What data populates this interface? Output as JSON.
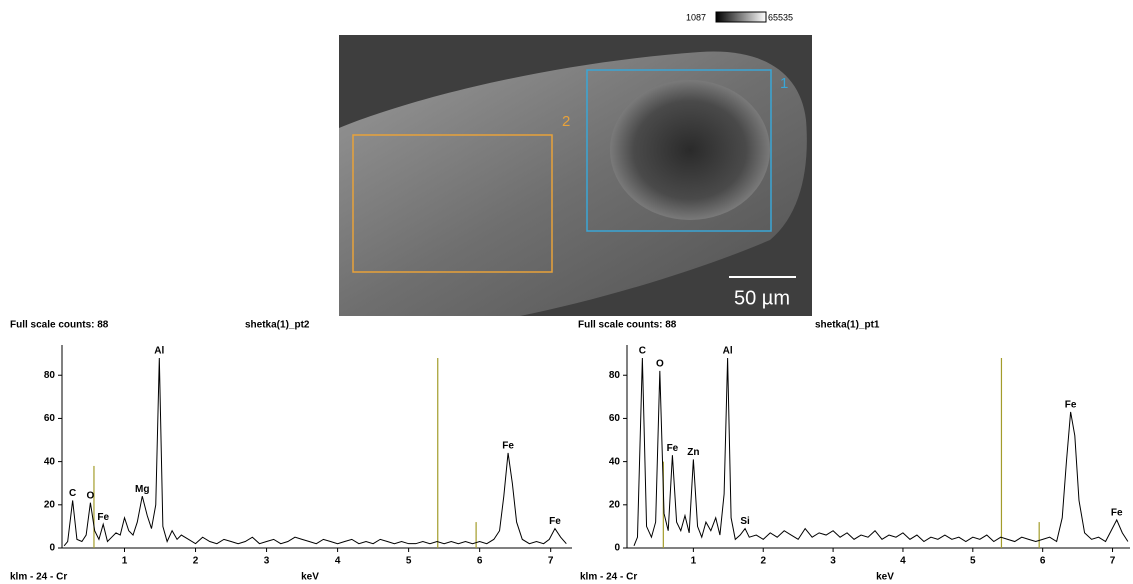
{
  "image": {
    "colorbar_min": 1087,
    "colorbar_max": 65535,
    "region_labels": [
      "1",
      "2"
    ],
    "scale_bar": "50 µm"
  },
  "chart_data": [
    {
      "type": "line",
      "title": "shetka(1)_pt2",
      "subtitle": "Full scale counts: 88",
      "marker_label": "klm - 24 - Cr",
      "x_label": "keV",
      "xlim": [
        0.12,
        7.3
      ],
      "ylim": [
        0,
        94
      ],
      "xticks": [
        1,
        2,
        3,
        4,
        5,
        6,
        7
      ],
      "yticks": [
        0,
        20,
        40,
        60,
        80
      ],
      "color": "#000000",
      "x": [
        0.15,
        0.2,
        0.27,
        0.33,
        0.4,
        0.46,
        0.52,
        0.58,
        0.64,
        0.7,
        0.76,
        0.82,
        0.88,
        0.94,
        1.0,
        1.06,
        1.12,
        1.18,
        1.25,
        1.32,
        1.38,
        1.44,
        1.49,
        1.54,
        1.6,
        1.67,
        1.74,
        1.8,
        1.9,
        2.0,
        2.1,
        2.2,
        2.3,
        2.4,
        2.5,
        2.6,
        2.7,
        2.8,
        2.9,
        3.0,
        3.1,
        3.2,
        3.3,
        3.4,
        3.5,
        3.6,
        3.7,
        3.8,
        3.9,
        4.0,
        4.1,
        4.2,
        4.3,
        4.4,
        4.5,
        4.6,
        4.7,
        4.8,
        4.9,
        5.0,
        5.1,
        5.2,
        5.3,
        5.4,
        5.5,
        5.6,
        5.7,
        5.8,
        5.9,
        6.0,
        6.1,
        6.2,
        6.28,
        6.34,
        6.4,
        6.46,
        6.52,
        6.6,
        6.7,
        6.8,
        6.9,
        6.98,
        7.06,
        7.14,
        7.22
      ],
      "values": [
        1,
        3,
        22,
        4,
        3,
        6,
        21,
        8,
        4,
        11,
        3,
        5,
        7,
        6,
        14,
        8,
        6,
        12,
        24,
        15,
        9,
        20,
        88,
        10,
        3,
        8,
        4,
        6,
        4,
        2,
        5,
        3,
        2,
        4,
        3,
        2,
        3,
        5,
        2,
        3,
        4,
        2,
        3,
        5,
        4,
        3,
        2,
        4,
        3,
        2,
        3,
        4,
        2,
        3,
        2,
        4,
        3,
        2,
        3,
        2,
        2,
        3,
        2,
        3,
        2,
        3,
        2,
        3,
        2,
        3,
        2,
        4,
        8,
        24,
        44,
        30,
        12,
        4,
        2,
        3,
        2,
        4,
        9,
        5,
        2
      ],
      "point_labels": [
        null,
        null,
        "C",
        null,
        null,
        null,
        "O",
        null,
        null,
        "Fe",
        null,
        null,
        null,
        null,
        null,
        null,
        null,
        null,
        "Mg",
        null,
        null,
        null,
        "Al",
        null,
        null,
        null,
        null,
        null,
        null,
        null,
        null,
        null,
        null,
        null,
        null,
        null,
        null,
        null,
        null,
        null,
        null,
        null,
        null,
        null,
        null,
        null,
        null,
        null,
        null,
        null,
        null,
        null,
        null,
        null,
        null,
        null,
        null,
        null,
        null,
        null,
        null,
        null,
        null,
        null,
        null,
        null,
        null,
        null,
        null,
        null,
        null,
        null,
        null,
        null,
        "Fe",
        null,
        null,
        null,
        null,
        null,
        null,
        null,
        "Fe",
        null,
        null
      ],
      "markers": {
        "color": "#a39c2a",
        "x": [
          0.57,
          5.41,
          5.95
        ],
        "values": [
          38,
          88,
          12
        ]
      }
    },
    {
      "type": "line",
      "title": "shetka(1)_pt1",
      "subtitle": "Full scale counts: 88",
      "marker_label": "klm - 24 - Cr",
      "x_label": "keV",
      "xlim": [
        0.05,
        7.25
      ],
      "ylim": [
        0,
        94
      ],
      "xticks": [
        1,
        2,
        3,
        4,
        5,
        6,
        7
      ],
      "yticks": [
        0,
        20,
        40,
        60,
        80
      ],
      "color": "#000000",
      "x": [
        0.15,
        0.2,
        0.27,
        0.33,
        0.4,
        0.46,
        0.52,
        0.58,
        0.64,
        0.7,
        0.76,
        0.82,
        0.88,
        0.94,
        1.0,
        1.06,
        1.12,
        1.18,
        1.25,
        1.32,
        1.38,
        1.44,
        1.49,
        1.54,
        1.6,
        1.67,
        1.74,
        1.8,
        1.9,
        2.0,
        2.1,
        2.2,
        2.3,
        2.4,
        2.5,
        2.6,
        2.7,
        2.8,
        2.9,
        3.0,
        3.1,
        3.2,
        3.3,
        3.4,
        3.5,
        3.6,
        3.7,
        3.8,
        3.9,
        4.0,
        4.1,
        4.2,
        4.3,
        4.4,
        4.5,
        4.6,
        4.7,
        4.8,
        4.9,
        5.0,
        5.1,
        5.2,
        5.3,
        5.4,
        5.5,
        5.6,
        5.7,
        5.8,
        5.9,
        6.0,
        6.1,
        6.2,
        6.28,
        6.34,
        6.4,
        6.46,
        6.52,
        6.6,
        6.7,
        6.8,
        6.9,
        6.98,
        7.06,
        7.14,
        7.22
      ],
      "values": [
        1,
        5,
        88,
        10,
        5,
        12,
        82,
        16,
        8,
        43,
        12,
        8,
        15,
        7,
        41,
        10,
        5,
        12,
        8,
        14,
        6,
        25,
        88,
        14,
        4,
        6,
        9,
        5,
        6,
        4,
        7,
        5,
        8,
        6,
        4,
        9,
        5,
        7,
        6,
        8,
        5,
        7,
        4,
        6,
        5,
        8,
        4,
        6,
        5,
        7,
        4,
        6,
        3,
        5,
        4,
        6,
        4,
        5,
        3,
        5,
        4,
        6,
        3,
        5,
        4,
        3,
        5,
        4,
        3,
        4,
        5,
        3,
        14,
        40,
        63,
        52,
        22,
        7,
        4,
        5,
        3,
        8,
        13,
        7,
        3
      ],
      "point_labels": [
        null,
        null,
        "C",
        null,
        null,
        null,
        "O",
        null,
        null,
        "Fe",
        null,
        null,
        null,
        null,
        "Zn",
        null,
        null,
        null,
        null,
        null,
        null,
        null,
        "Al",
        null,
        null,
        null,
        "Si",
        null,
        null,
        null,
        null,
        null,
        null,
        null,
        null,
        null,
        null,
        null,
        null,
        null,
        null,
        null,
        null,
        null,
        null,
        null,
        null,
        null,
        null,
        null,
        null,
        null,
        null,
        null,
        null,
        null,
        null,
        null,
        null,
        null,
        null,
        null,
        null,
        null,
        null,
        null,
        null,
        null,
        null,
        null,
        null,
        null,
        null,
        null,
        "Fe",
        null,
        null,
        null,
        null,
        null,
        null,
        null,
        "Fe",
        null,
        null
      ],
      "markers": {
        "color": "#a39c2a",
        "x": [
          0.57,
          5.41,
          5.95
        ],
        "values": [
          40,
          88,
          12
        ]
      }
    }
  ]
}
